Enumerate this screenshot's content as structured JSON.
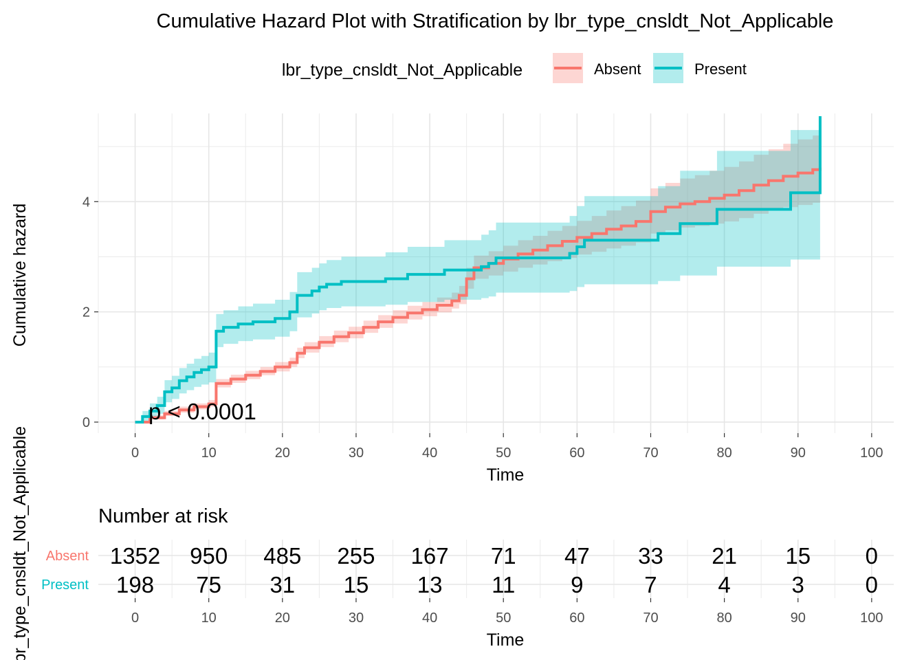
{
  "chart_data": [
    {
      "type": "line",
      "title": "Cumulative Hazard Plot with Stratification by lbr_type_cnsldt_Not_Applicable",
      "xlabel": "Time",
      "ylabel": "Cumulative hazard",
      "xlim": [
        -5,
        103
      ],
      "ylim": [
        -0.2,
        5.6
      ],
      "x_ticks": [
        0,
        10,
        20,
        30,
        40,
        50,
        60,
        70,
        80,
        90,
        100
      ],
      "y_ticks": [
        0,
        2,
        4
      ],
      "grid": true,
      "legend": {
        "title": "lbr_type_cnsldt_Not_Applicable",
        "position": "top",
        "entries": [
          "Absent",
          "Present"
        ]
      },
      "annotation": "p < 0.0001",
      "series": [
        {
          "name": "Absent",
          "color": "#F8766D",
          "fill": "#F8766D",
          "x": [
            0,
            2,
            4,
            6,
            8,
            10,
            11,
            13,
            15,
            17,
            19,
            21,
            22,
            23,
            25,
            27,
            29,
            31,
            33,
            35,
            37,
            39,
            41,
            43,
            44,
            45,
            46,
            48,
            50,
            52,
            54,
            56,
            58,
            60,
            62,
            64,
            66,
            68,
            70,
            72,
            74,
            76,
            78,
            80,
            82,
            84,
            86,
            88,
            90,
            92,
            93
          ],
          "y": [
            0,
            0.08,
            0.15,
            0.22,
            0.28,
            0.33,
            0.7,
            0.78,
            0.85,
            0.92,
            1.0,
            1.08,
            1.25,
            1.35,
            1.45,
            1.55,
            1.62,
            1.72,
            1.82,
            1.9,
            1.98,
            2.04,
            2.12,
            2.2,
            2.3,
            2.6,
            2.8,
            2.88,
            2.96,
            3.05,
            3.12,
            3.2,
            3.28,
            3.35,
            3.42,
            3.5,
            3.56,
            3.64,
            3.82,
            3.9,
            3.96,
            4.0,
            4.06,
            4.12,
            4.2,
            4.3,
            4.38,
            4.46,
            4.52,
            4.58,
            4.62
          ],
          "lower": [
            0,
            0.05,
            0.11,
            0.17,
            0.23,
            0.28,
            0.63,
            0.71,
            0.78,
            0.85,
            0.92,
            1.0,
            1.16,
            1.26,
            1.36,
            1.45,
            1.52,
            1.62,
            1.71,
            1.79,
            1.86,
            1.92,
            1.99,
            2.06,
            2.14,
            2.42,
            2.6,
            2.66,
            2.73,
            2.8,
            2.86,
            2.92,
            2.98,
            3.04,
            3.09,
            3.15,
            3.2,
            3.26,
            3.42,
            3.48,
            3.53,
            3.56,
            3.6,
            3.64,
            3.7,
            3.78,
            3.84,
            3.9,
            3.94,
            3.98,
            4.0
          ],
          "upper": [
            0,
            0.12,
            0.2,
            0.28,
            0.34,
            0.4,
            0.78,
            0.86,
            0.93,
            1.0,
            1.09,
            1.17,
            1.35,
            1.45,
            1.56,
            1.66,
            1.73,
            1.84,
            1.94,
            2.03,
            2.11,
            2.18,
            2.26,
            2.35,
            2.47,
            2.8,
            3.02,
            3.1,
            3.2,
            3.3,
            3.38,
            3.47,
            3.56,
            3.65,
            3.74,
            3.84,
            3.92,
            4.02,
            4.24,
            4.34,
            4.42,
            4.48,
            4.56,
            4.63,
            4.73,
            4.85,
            4.95,
            5.05,
            5.13,
            5.2,
            5.26
          ]
        },
        {
          "name": "Present",
          "color": "#00BFC4",
          "fill": "#00BFC4",
          "x": [
            0,
            1,
            2,
            3,
            4,
            5,
            6,
            7,
            8,
            9,
            10,
            11,
            12,
            14,
            16,
            19,
            21,
            22,
            24,
            25,
            26,
            28,
            34,
            37,
            42,
            47,
            48,
            49,
            59,
            60,
            61,
            71,
            74,
            79,
            89,
            93
          ],
          "y": [
            0,
            0.1,
            0.2,
            0.3,
            0.55,
            0.62,
            0.75,
            0.82,
            0.9,
            0.95,
            1.0,
            1.65,
            1.72,
            1.78,
            1.82,
            1.88,
            2.0,
            2.3,
            2.38,
            2.45,
            2.5,
            2.55,
            2.6,
            2.68,
            2.76,
            2.82,
            2.88,
            2.98,
            3.06,
            3.18,
            3.3,
            3.42,
            3.6,
            3.86,
            4.16,
            5.55
          ],
          "lower": [
            0,
            0.02,
            0.08,
            0.15,
            0.36,
            0.42,
            0.52,
            0.58,
            0.64,
            0.68,
            0.72,
            1.36,
            1.42,
            1.47,
            1.5,
            1.55,
            1.65,
            1.9,
            1.97,
            2.03,
            2.07,
            2.1,
            2.13,
            2.18,
            2.22,
            2.25,
            2.28,
            2.35,
            2.38,
            2.45,
            2.5,
            2.56,
            2.66,
            2.82,
            2.95,
            3.05
          ],
          "upper": [
            0,
            0.2,
            0.34,
            0.46,
            0.76,
            0.84,
            0.98,
            1.06,
            1.15,
            1.2,
            1.26,
            1.96,
            2.03,
            2.1,
            2.15,
            2.22,
            2.36,
            2.72,
            2.8,
            2.88,
            2.94,
            3.0,
            3.08,
            3.18,
            3.3,
            3.4,
            3.48,
            3.62,
            3.74,
            3.92,
            4.1,
            4.28,
            4.56,
            4.92,
            5.3,
            5.6
          ]
        }
      ]
    },
    {
      "type": "table",
      "title": "Number at risk",
      "xlabel": "Time",
      "ylabel": "lbr_type_cnsldt_Not_Applicable",
      "x_ticks": [
        0,
        10,
        20,
        30,
        40,
        50,
        60,
        70,
        80,
        90,
        100
      ],
      "rows": [
        {
          "name": "Absent",
          "color": "#F8766D",
          "values": [
            1352,
            950,
            485,
            255,
            167,
            71,
            47,
            33,
            21,
            15,
            0
          ]
        },
        {
          "name": "Present",
          "color": "#00BFC4",
          "values": [
            198,
            75,
            31,
            15,
            13,
            11,
            9,
            7,
            4,
            3,
            0
          ]
        }
      ]
    }
  ]
}
